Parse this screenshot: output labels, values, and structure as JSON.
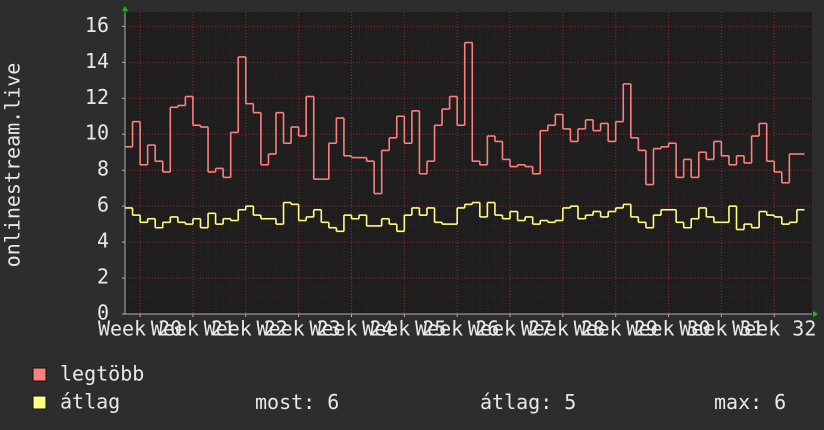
{
  "chart_data": {
    "type": "step",
    "y_label": "onlinestream.live",
    "xlim": [
      0,
      91
    ],
    "xticks": [
      {
        "value": 2,
        "label": "Week 20"
      },
      {
        "value": 9,
        "label": "Week 21"
      },
      {
        "value": 16,
        "label": "Week 22"
      },
      {
        "value": 23,
        "label": "Week 23"
      },
      {
        "value": 30,
        "label": "Week 24"
      },
      {
        "value": 37,
        "label": "Week 25"
      },
      {
        "value": 44,
        "label": "Week 26"
      },
      {
        "value": 51,
        "label": "Week 27"
      },
      {
        "value": 58,
        "label": "Week 28"
      },
      {
        "value": 65,
        "label": "Week 29"
      },
      {
        "value": 72,
        "label": "Week 30"
      },
      {
        "value": 79,
        "label": "Week 31"
      },
      {
        "value": 86,
        "label": "Week 32"
      }
    ],
    "ylim": [
      0,
      16.8
    ],
    "yticks": [
      0,
      2,
      4,
      6,
      8,
      10,
      12,
      14,
      16
    ],
    "grid": true,
    "series": [
      {
        "name": "legtöbb",
        "color": "#ff7f7f",
        "values": [
          9.3,
          10.7,
          8.3,
          9.4,
          8.5,
          7.9,
          11.5,
          11.6,
          12.1,
          10.5,
          10.4,
          7.9,
          8.1,
          7.6,
          10.1,
          14.3,
          11.7,
          11.2,
          8.3,
          8.9,
          11.2,
          9.5,
          10.4,
          9.9,
          12.1,
          7.5,
          7.5,
          9.5,
          10.9,
          8.8,
          8.7,
          8.7,
          8.5,
          6.7,
          9.1,
          9.8,
          11.0,
          9.5,
          11.3,
          7.8,
          8.5,
          10.5,
          11.4,
          12.1,
          10.5,
          15.1,
          8.5,
          8.3,
          9.9,
          9.6,
          8.6,
          8.2,
          8.3,
          8.2,
          7.8,
          10.2,
          10.5,
          11.1,
          10.3,
          9.6,
          10.3,
          10.8,
          10.2,
          10.6,
          9.6,
          10.7,
          12.8,
          9.8,
          9.1,
          7.2,
          9.2,
          9.3,
          9.5,
          7.6,
          8.6,
          7.6,
          9.0,
          8.6,
          9.6,
          8.8,
          8.3,
          8.8,
          8.4,
          9.9,
          10.6,
          8.5,
          7.9,
          7.3,
          8.9,
          8.9
        ]
      },
      {
        "name": "átlag",
        "color": "#ffff80",
        "values": [
          5.9,
          5.5,
          5.1,
          5.3,
          4.8,
          5.1,
          5.4,
          5.1,
          5.0,
          5.3,
          4.8,
          5.6,
          5.0,
          5.3,
          5.2,
          5.8,
          6.0,
          5.5,
          5.3,
          5.3,
          5.0,
          6.2,
          6.1,
          5.2,
          5.4,
          5.8,
          5.1,
          4.8,
          4.6,
          5.5,
          5.3,
          5.5,
          4.9,
          4.9,
          5.3,
          5.0,
          4.6,
          5.5,
          5.9,
          5.5,
          5.9,
          5.1,
          5.0,
          5.0,
          5.9,
          6.1,
          6.2,
          5.4,
          6.2,
          5.5,
          5.3,
          5.7,
          5.2,
          5.4,
          5.0,
          5.2,
          5.1,
          5.2,
          5.9,
          6.0,
          5.3,
          5.5,
          5.7,
          5.4,
          5.7,
          5.9,
          6.1,
          5.4,
          5.1,
          4.8,
          5.5,
          5.8,
          5.8,
          5.1,
          4.8,
          5.3,
          5.9,
          5.4,
          5.1,
          5.1,
          6.0,
          4.7,
          5.0,
          4.8,
          5.7,
          5.5,
          5.4,
          5.0,
          5.1,
          5.8
        ]
      }
    ],
    "stats": [
      {
        "label": "most:",
        "value": 6
      },
      {
        "label": "átlag:",
        "value": 5
      },
      {
        "label": "max:",
        "value": 6
      }
    ]
  }
}
